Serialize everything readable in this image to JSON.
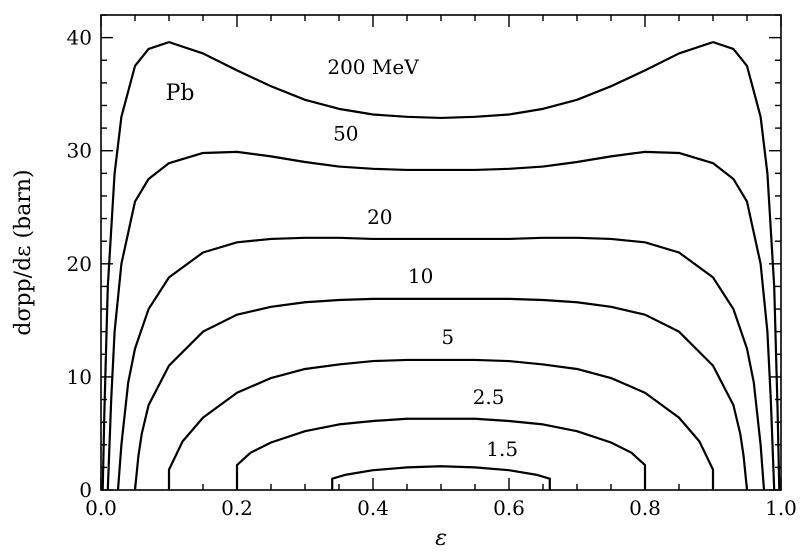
{
  "chart_data": {
    "type": "line",
    "title": "",
    "xlabel": "ε",
    "ylabel": "dσpp/dε   (barn)",
    "xlim": [
      0.0,
      1.0
    ],
    "ylim": [
      0,
      42
    ],
    "x_ticks": [
      0.0,
      0.2,
      0.4,
      0.6,
      0.8,
      1.0
    ],
    "x_tick_labels": [
      "0.0",
      "0.2",
      "0.4",
      "0.6",
      "0.8",
      "1.0"
    ],
    "y_ticks": [
      0,
      10,
      20,
      30,
      40
    ],
    "y_tick_labels": [
      "0",
      "10",
      "20",
      "30",
      "40"
    ],
    "grid": false,
    "annotation": "Pb",
    "series": [
      {
        "name": "200 MeV",
        "x": [
          0.0025,
          0.005,
          0.01,
          0.02,
          0.03,
          0.05,
          0.07,
          0.1,
          0.15,
          0.2,
          0.25,
          0.3,
          0.35,
          0.4,
          0.45,
          0.5,
          0.55,
          0.6,
          0.65,
          0.7,
          0.75,
          0.8,
          0.85,
          0.9,
          0.93,
          0.95,
          0.97,
          0.98,
          0.99,
          0.995,
          0.9975
        ],
        "y": [
          0,
          7,
          18,
          28,
          33,
          37.5,
          39,
          39.6,
          38.6,
          37.1,
          35.7,
          34.5,
          33.7,
          33.2,
          33.0,
          32.9,
          33.0,
          33.2,
          33.7,
          34.5,
          35.7,
          37.1,
          38.6,
          39.6,
          39,
          37.5,
          33,
          28,
          18,
          7,
          0
        ]
      },
      {
        "name": "50",
        "x": [
          0.01,
          0.015,
          0.02,
          0.03,
          0.05,
          0.07,
          0.1,
          0.15,
          0.2,
          0.25,
          0.3,
          0.35,
          0.4,
          0.45,
          0.5,
          0.55,
          0.6,
          0.65,
          0.7,
          0.75,
          0.8,
          0.85,
          0.9,
          0.93,
          0.95,
          0.97,
          0.98,
          0.985,
          0.99
        ],
        "y": [
          0,
          8,
          14,
          20,
          25.5,
          27.5,
          28.9,
          29.8,
          29.9,
          29.5,
          29.0,
          28.6,
          28.4,
          28.3,
          28.3,
          28.3,
          28.4,
          28.6,
          29.0,
          29.5,
          29.9,
          29.8,
          28.9,
          27.5,
          25.5,
          20,
          14,
          8,
          0
        ]
      },
      {
        "name": "20",
        "x": [
          0.025,
          0.03,
          0.04,
          0.05,
          0.07,
          0.1,
          0.15,
          0.2,
          0.25,
          0.3,
          0.35,
          0.4,
          0.45,
          0.5,
          0.55,
          0.6,
          0.65,
          0.7,
          0.75,
          0.8,
          0.85,
          0.9,
          0.93,
          0.95,
          0.96,
          0.97,
          0.975
        ],
        "y": [
          0,
          4,
          9.5,
          12.5,
          16,
          18.8,
          21.0,
          21.9,
          22.2,
          22.3,
          22.3,
          22.2,
          22.2,
          22.2,
          22.2,
          22.2,
          22.3,
          22.3,
          22.2,
          21.9,
          21.0,
          18.8,
          16,
          12.5,
          9.5,
          4,
          0
        ]
      },
      {
        "name": "10",
        "x": [
          0.05,
          0.055,
          0.06,
          0.07,
          0.1,
          0.15,
          0.2,
          0.25,
          0.3,
          0.35,
          0.4,
          0.45,
          0.5,
          0.55,
          0.6,
          0.65,
          0.7,
          0.75,
          0.8,
          0.85,
          0.9,
          0.93,
          0.94,
          0.945,
          0.95
        ],
        "y": [
          0,
          3,
          5,
          7.5,
          11,
          14,
          15.5,
          16.2,
          16.6,
          16.8,
          16.9,
          16.9,
          16.9,
          16.9,
          16.9,
          16.8,
          16.6,
          16.2,
          15.5,
          14,
          11,
          7.5,
          5,
          3,
          0
        ]
      },
      {
        "name": "5",
        "x": [
          0.1,
          0.1,
          0.12,
          0.15,
          0.2,
          0.25,
          0.3,
          0.35,
          0.4,
          0.45,
          0.5,
          0.55,
          0.6,
          0.65,
          0.7,
          0.75,
          0.8,
          0.85,
          0.88,
          0.9,
          0.9
        ],
        "y": [
          0,
          1.8,
          4.3,
          6.4,
          8.6,
          9.9,
          10.7,
          11.1,
          11.4,
          11.5,
          11.5,
          11.5,
          11.4,
          11.1,
          10.7,
          9.9,
          8.6,
          6.4,
          4.3,
          1.8,
          0
        ]
      },
      {
        "name": "2.5",
        "x": [
          0.2,
          0.2,
          0.22,
          0.25,
          0.3,
          0.35,
          0.4,
          0.45,
          0.5,
          0.55,
          0.6,
          0.65,
          0.7,
          0.75,
          0.78,
          0.8,
          0.8
        ],
        "y": [
          0,
          2.2,
          3.3,
          4.2,
          5.2,
          5.8,
          6.1,
          6.3,
          6.3,
          6.3,
          6.1,
          5.8,
          5.2,
          4.2,
          3.3,
          2.2,
          0
        ]
      },
      {
        "name": "1.5",
        "x": [
          0.34,
          0.34,
          0.36,
          0.4,
          0.45,
          0.5,
          0.55,
          0.6,
          0.64,
          0.66,
          0.66
        ],
        "y": [
          0,
          1.0,
          1.35,
          1.75,
          2.0,
          2.1,
          2.0,
          1.75,
          1.35,
          1.0,
          0
        ]
      }
    ],
    "curve_labels": [
      {
        "text": "200 MeV",
        "x": 0.4,
        "y": 36.8
      },
      {
        "text": "50",
        "x": 0.36,
        "y": 30.9
      },
      {
        "text": "20",
        "x": 0.41,
        "y": 23.5
      },
      {
        "text": "10",
        "x": 0.47,
        "y": 18.3
      },
      {
        "text": "5",
        "x": 0.51,
        "y": 12.9
      },
      {
        "text": "2.5",
        "x": 0.57,
        "y": 7.6
      },
      {
        "text": "1.5",
        "x": 0.59,
        "y": 3.0
      }
    ],
    "annotation_position": {
      "x": 0.095,
      "y": 34.5
    }
  }
}
